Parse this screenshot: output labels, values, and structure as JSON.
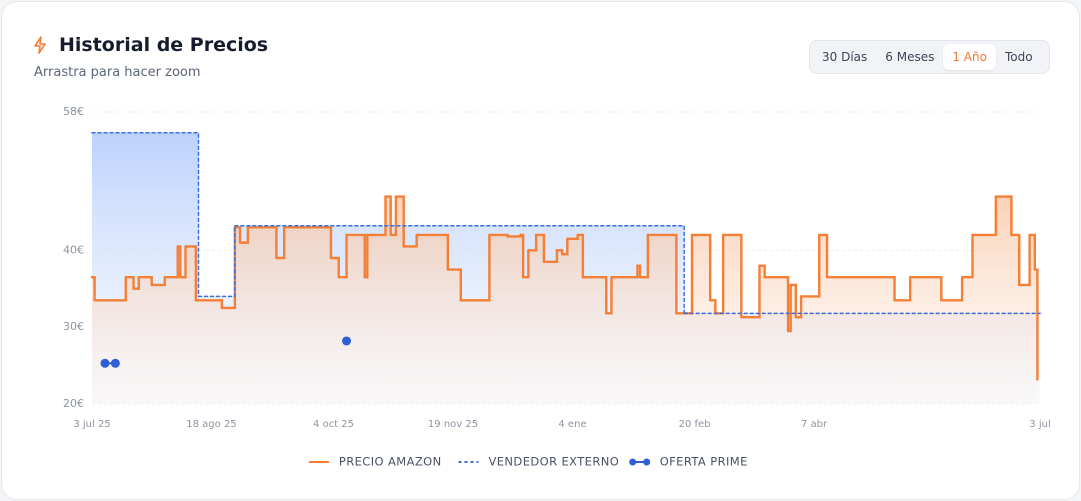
{
  "header": {
    "title": "Historial de Precios",
    "subtitle": "Arrastra para hacer zoom"
  },
  "controls": {
    "options": [
      "30 Días",
      "6 Meses",
      "1 Año",
      "Todo"
    ],
    "active": 2
  },
  "chart_data": {
    "type": "line",
    "xlim": [
      "2025-07-03",
      "2026-07-03"
    ],
    "xticks": [
      {
        "value": "2025-07-03",
        "label": "3 jul 25"
      },
      {
        "value": "2025-08-18",
        "label": "18 ago 25"
      },
      {
        "value": "2025-10-04",
        "label": "4 oct 25"
      },
      {
        "value": "2025-11-19",
        "label": "19 nov 25"
      },
      {
        "value": "2026-01-04",
        "label": "4 ene"
      },
      {
        "value": "2026-02-20",
        "label": "20 feb"
      },
      {
        "value": "2026-04-07",
        "label": "7 abr"
      },
      {
        "value": "2026-07-03",
        "label": "3 jul"
      }
    ],
    "ylim": [
      20,
      58
    ],
    "yticks": [
      {
        "value": 20,
        "label": "20€"
      },
      {
        "value": 30,
        "label": "30€"
      },
      {
        "value": 40,
        "label": "40€"
      },
      {
        "value": 58,
        "label": "58€"
      }
    ],
    "grid": true,
    "series": [
      {
        "name": "PRECIO AMAZON",
        "color": "#f47f35",
        "style": "solid",
        "x": [
          "2025-07-03",
          "2025-07-04",
          "2025-07-16",
          "2025-07-19",
          "2025-07-21",
          "2025-07-26",
          "2025-07-31",
          "2025-08-05",
          "2025-08-06",
          "2025-08-08",
          "2025-08-12",
          "2025-08-22",
          "2025-08-27",
          "2025-08-29",
          "2025-09-01",
          "2025-09-12",
          "2025-09-15",
          "2025-10-03",
          "2025-10-06",
          "2025-10-09",
          "2025-10-16",
          "2025-10-17",
          "2025-10-24",
          "2025-10-26",
          "2025-10-28",
          "2025-10-31",
          "2025-11-05",
          "2025-11-17",
          "2025-11-22",
          "2025-12-03",
          "2025-12-10",
          "2025-12-15",
          "2025-12-16",
          "2025-12-18",
          "2025-12-21",
          "2025-12-24",
          "2025-12-29",
          "2025-12-31",
          "2026-01-02",
          "2026-01-06",
          "2026-01-08",
          "2026-01-17",
          "2026-01-19",
          "2026-01-29",
          "2026-01-30",
          "2026-02-02",
          "2026-02-13",
          "2026-02-19",
          "2026-02-26",
          "2026-02-28",
          "2026-03-03",
          "2026-03-10",
          "2026-03-17",
          "2026-03-19",
          "2026-03-28",
          "2026-03-29",
          "2026-03-31",
          "2026-04-02",
          "2026-04-09",
          "2026-04-12",
          "2026-05-08",
          "2026-05-14",
          "2026-05-26",
          "2026-06-03",
          "2026-06-07",
          "2026-06-16",
          "2026-06-22",
          "2026-06-25",
          "2026-06-29",
          "2026-07-01",
          "2026-07-02"
        ],
        "values": [
          36.5,
          33.5,
          36.5,
          35,
          36.5,
          35.5,
          36.5,
          40.5,
          36.5,
          40.5,
          33.5,
          32.5,
          43,
          41,
          43,
          39,
          43,
          39,
          36.5,
          42,
          36.5,
          42,
          47,
          42,
          47,
          40.5,
          42,
          37.5,
          33.5,
          42,
          41.8,
          42,
          36.5,
          40,
          42,
          38.5,
          40,
          39.5,
          41.5,
          42,
          36.5,
          31.8,
          36.5,
          38,
          36.5,
          42,
          31.8,
          42,
          33.5,
          31.8,
          42,
          31.3,
          38,
          36.5,
          29.5,
          35.5,
          31.3,
          34,
          42,
          36.5,
          33.5,
          36.5,
          33.5,
          36.5,
          42,
          47,
          42,
          35.5,
          42,
          37.5,
          23.2
        ]
      },
      {
        "name": "VENDEDOR EXTERNO",
        "color": "#3b6fe0",
        "style": "dashed",
        "x": [
          "2025-07-03",
          "2025-08-13",
          "2025-08-27",
          "2026-02-16",
          "2026-07-03"
        ],
        "values": [
          55.3,
          34,
          43.2,
          31.8,
          31.8
        ]
      },
      {
        "name": "OFERTA PRIME",
        "color": "#2f5fd6",
        "style": "points",
        "x": [
          "2025-07-08",
          "2025-07-12",
          "2025-10-09"
        ],
        "values": [
          25.3,
          25.3,
          28.2
        ]
      }
    ]
  }
}
